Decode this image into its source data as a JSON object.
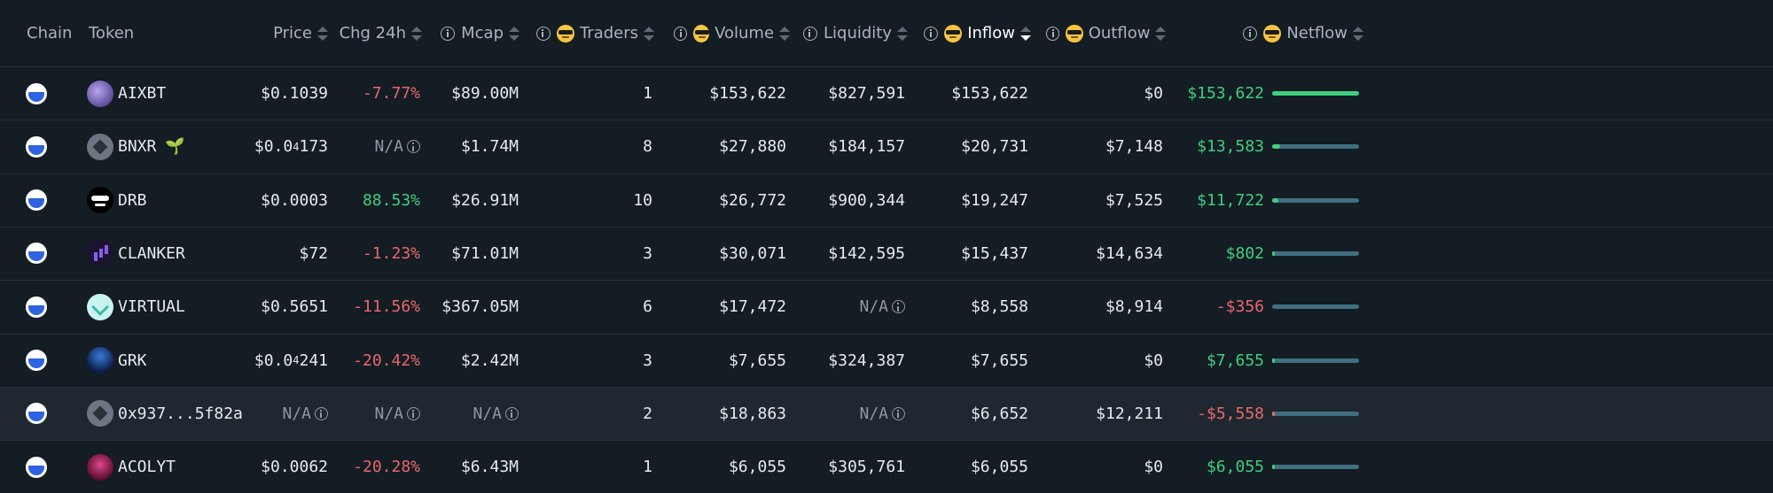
{
  "headers": {
    "chain": "Chain",
    "token": "Token",
    "price": "Price",
    "chg": "Chg 24h",
    "mcap": "Mcap",
    "traders": "Traders",
    "volume": "Volume",
    "liquidity": "Liquidity",
    "inflow": "Inflow",
    "outflow": "Outflow",
    "netflow": "Netflow"
  },
  "icons": {
    "chain": "base-chain-icon",
    "info": "info-icon",
    "smart_money": "sunglasses-emoji-icon",
    "sort": "sort-arrows-icon"
  },
  "colors": {
    "negative": "#e8676a",
    "positive": "#3fcf7d",
    "bar_track": "#3f6f80",
    "highlight_row": "#1f2730"
  },
  "rows": [
    {
      "token": "AIXBT",
      "price_main": "$0.1039",
      "price_sub": "",
      "price_tail": "",
      "chg": "-7.77%",
      "chg_dir": "neg",
      "mcap": "$89.00M",
      "traders": "1",
      "volume": "$153,622",
      "liquidity": "$827,591",
      "inflow": "$153,622",
      "outflow": "$0",
      "netflow": "$153,622",
      "net_dir": "pos",
      "bar_fraction": 1.0,
      "icon": "aixbt-token-icon"
    },
    {
      "token": "BNXR",
      "price_main": "$0.0",
      "price_sub": "4",
      "price_tail": "173",
      "chg": "N/A",
      "chg_dir": "na",
      "mcap": "$1.74M",
      "traders": "8",
      "volume": "$27,880",
      "liquidity": "$184,157",
      "inflow": "$20,731",
      "outflow": "$7,148",
      "netflow": "$13,583",
      "net_dir": "pos",
      "bar_fraction": 0.088,
      "icon": "bnxr-token-icon",
      "sprout": "sprout-icon"
    },
    {
      "token": "DRB",
      "price_main": "$0.0003",
      "price_sub": "",
      "price_tail": "",
      "chg": "88.53%",
      "chg_dir": "pos",
      "mcap": "$26.91M",
      "traders": "10",
      "volume": "$26,772",
      "liquidity": "$900,344",
      "inflow": "$19,247",
      "outflow": "$7,525",
      "netflow": "$11,722",
      "net_dir": "pos",
      "bar_fraction": 0.076,
      "icon": "drb-token-icon"
    },
    {
      "token": "CLANKER",
      "price_main": "$72",
      "price_sub": "",
      "price_tail": "",
      "chg": "-1.23%",
      "chg_dir": "neg",
      "mcap": "$71.01M",
      "traders": "3",
      "volume": "$30,071",
      "liquidity": "$142,595",
      "inflow": "$15,437",
      "outflow": "$14,634",
      "netflow": "$802",
      "net_dir": "pos",
      "bar_fraction": 0.005,
      "icon": "clanker-token-icon"
    },
    {
      "token": "VIRTUAL",
      "price_main": "$0.5651",
      "price_sub": "",
      "price_tail": "",
      "chg": "-11.56%",
      "chg_dir": "neg",
      "mcap": "$367.05M",
      "traders": "6",
      "volume": "$17,472",
      "liquidity": "N/A",
      "inflow": "$8,558",
      "outflow": "$8,914",
      "netflow": "-$356",
      "net_dir": "neg",
      "bar_fraction": 0.0,
      "icon": "virtual-token-icon"
    },
    {
      "token": "GRK",
      "price_main": "$0.0",
      "price_sub": "4",
      "price_tail": "241",
      "chg": "-20.42%",
      "chg_dir": "neg",
      "mcap": "$2.42M",
      "traders": "3",
      "volume": "$7,655",
      "liquidity": "$324,387",
      "inflow": "$7,655",
      "outflow": "$0",
      "netflow": "$7,655",
      "net_dir": "pos",
      "bar_fraction": 0.03,
      "icon": "grk-token-icon"
    },
    {
      "token": "0x937...5f82a",
      "price_main": "N/A",
      "price_sub": "",
      "price_tail": "",
      "chg": "N/A",
      "chg_dir": "na",
      "mcap": "N/A",
      "traders": "2",
      "volume": "$18,863",
      "liquidity": "N/A",
      "inflow": "$6,652",
      "outflow": "$12,211",
      "netflow": "-$5,558",
      "net_dir": "neg",
      "bar_fraction": 0.03,
      "icon": "unknown-token-icon",
      "highlight": true
    },
    {
      "token": "ACOLYT",
      "price_main": "$0.0062",
      "price_sub": "",
      "price_tail": "",
      "chg": "-20.28%",
      "chg_dir": "neg",
      "mcap": "$6.43M",
      "traders": "1",
      "volume": "$6,055",
      "liquidity": "$305,761",
      "inflow": "$6,055",
      "outflow": "$0",
      "netflow": "$6,055",
      "net_dir": "pos",
      "bar_fraction": 0.03,
      "icon": "acolyt-token-icon"
    }
  ]
}
